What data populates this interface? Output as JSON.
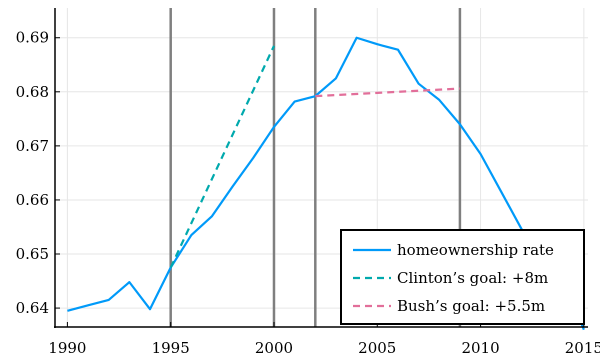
{
  "chart_data": {
    "type": "line",
    "title": "",
    "xlabel": "",
    "ylabel": "",
    "xlim": [
      1989.4,
      2015.2
    ],
    "ylim": [
      0.6365,
      0.6955
    ],
    "xticks": [
      1990,
      1995,
      2000,
      2005,
      2010,
      2015
    ],
    "yticks": [
      0.64,
      0.65,
      0.66,
      0.67,
      0.68,
      0.69
    ],
    "ytick_labels": [
      "0.64",
      "0.65",
      "0.66",
      "0.67",
      "0.68",
      "0.69"
    ],
    "grid": true,
    "legend_position": "bottom-right",
    "vertical_lines": [
      1995,
      2000,
      2002,
      2009
    ],
    "series": [
      {
        "name": "homeownership rate",
        "color": "#009AF9",
        "style": "solid",
        "x": [
          1990,
          1991,
          1992,
          1993,
          1994,
          1995,
          1996,
          1997,
          1998,
          1999,
          2000,
          2001,
          2002,
          2003,
          2004,
          2005,
          2006,
          2007,
          2008,
          2009,
          2010,
          2011,
          2012,
          2013,
          2014,
          2015
        ],
        "values": [
          0.6395,
          0.6405,
          0.6415,
          0.6448,
          0.6398,
          0.6475,
          0.6535,
          0.657,
          0.6625,
          0.6678,
          0.6735,
          0.6782,
          0.6792,
          0.6825,
          0.69,
          0.6888,
          0.6878,
          0.6815,
          0.6785,
          0.674,
          0.6685,
          0.6615,
          0.6545,
          0.6515,
          0.646,
          0.636
        ]
      },
      {
        "name": "Clinton’s goal: +8m",
        "color": "#00A9AD",
        "style": "dashed",
        "x": [
          1995,
          2000
        ],
        "values": [
          0.6475,
          0.6885
        ]
      },
      {
        "name": "Bush’s goal: +5.5m",
        "color": "#E26F9A",
        "style": "dashed",
        "x": [
          2002,
          2009
        ],
        "values": [
          0.6792,
          0.6806
        ]
      }
    ]
  }
}
